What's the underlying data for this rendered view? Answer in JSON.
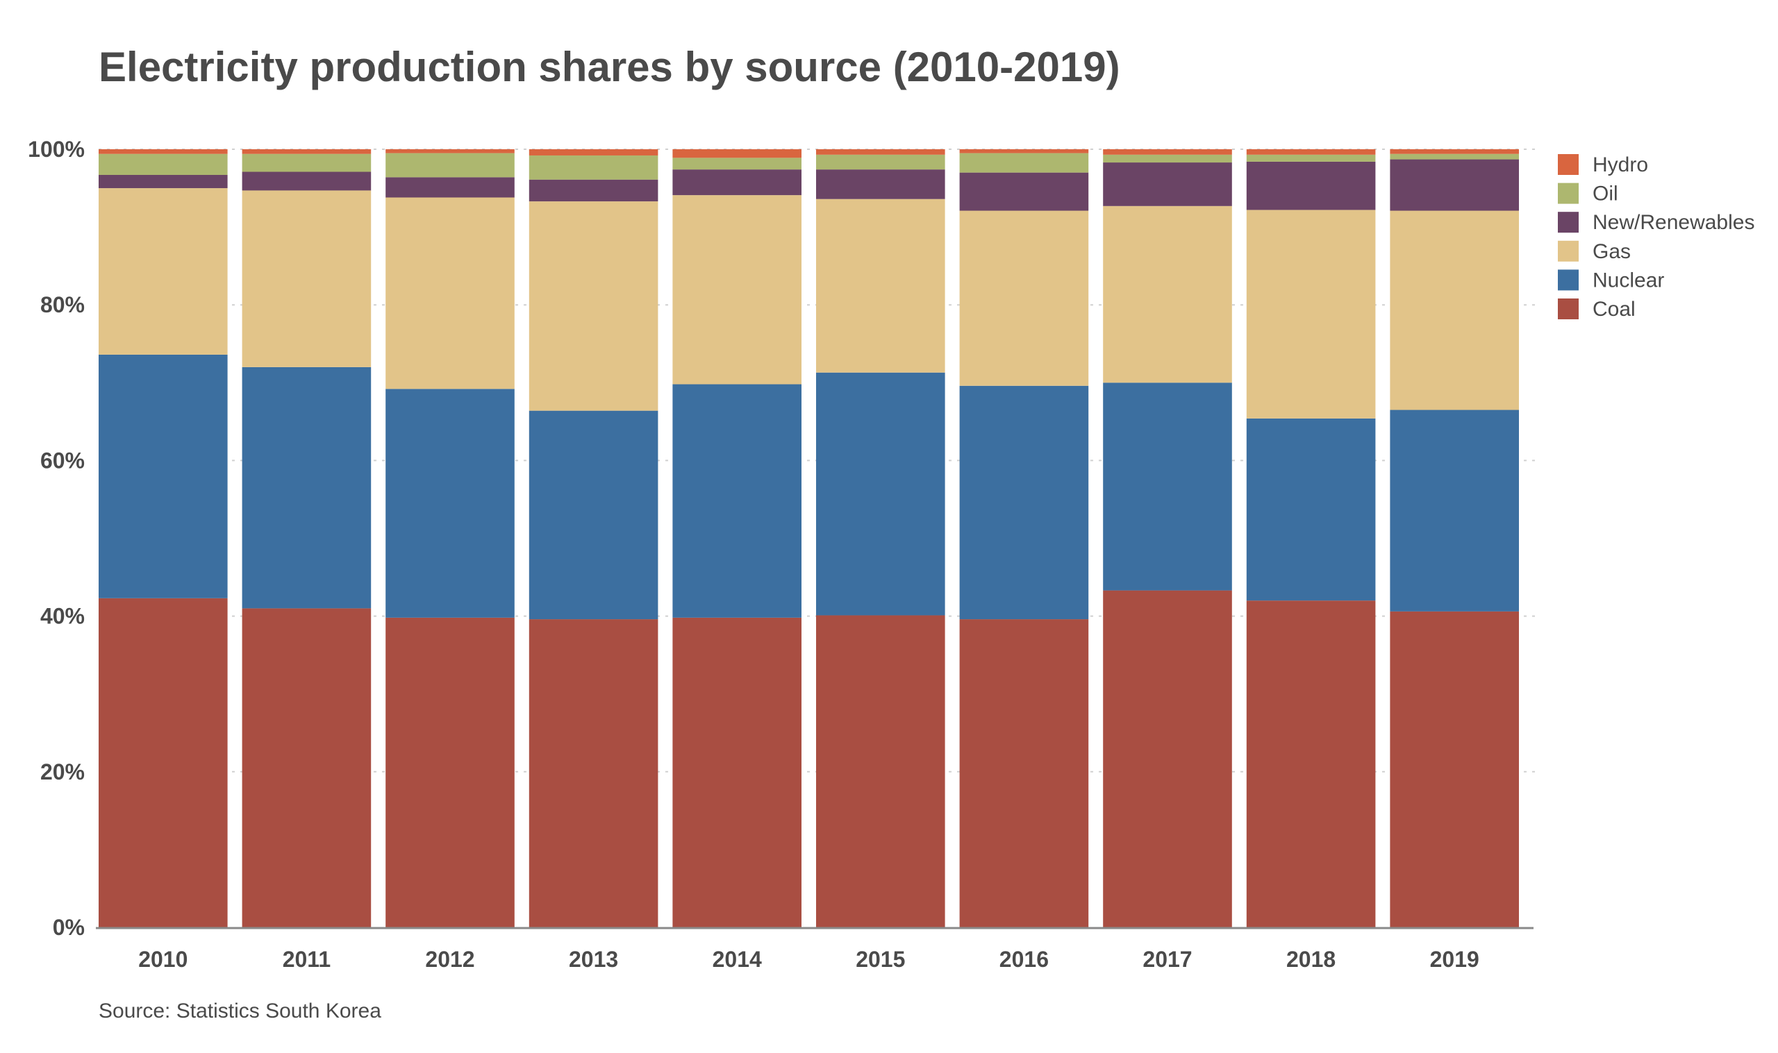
{
  "chart_data": {
    "type": "bar",
    "stacked": true,
    "normalized": true,
    "title": "Electricity production shares by source (2010-2019)",
    "source": "Source: Statistics South Korea",
    "categories": [
      "2010",
      "2011",
      "2012",
      "2013",
      "2014",
      "2015",
      "2016",
      "2017",
      "2018",
      "2019"
    ],
    "y_ticks": [
      "0%",
      "20%",
      "40%",
      "60%",
      "80%",
      "100%"
    ],
    "ylim": [
      0,
      100
    ],
    "grid": true,
    "legend_position": "top-right",
    "series": [
      {
        "name": "Coal",
        "color": "#a94e42",
        "values": [
          42.3,
          41.0,
          39.8,
          39.6,
          39.8,
          40.1,
          39.6,
          43.3,
          42.0,
          40.6
        ]
      },
      {
        "name": "Nuclear",
        "color": "#3c6fa0",
        "values": [
          31.3,
          31.0,
          29.4,
          26.8,
          30.0,
          31.2,
          30.0,
          26.7,
          23.4,
          25.9
        ]
      },
      {
        "name": "Gas",
        "color": "#e2c489",
        "values": [
          21.4,
          22.7,
          24.6,
          26.9,
          24.3,
          22.3,
          22.5,
          22.7,
          26.8,
          25.6
        ]
      },
      {
        "name": "New/Renewables",
        "color": "#6a4465",
        "values": [
          1.7,
          2.4,
          2.6,
          2.8,
          3.3,
          3.8,
          4.9,
          5.6,
          6.2,
          6.6
        ]
      },
      {
        "name": "Oil",
        "color": "#adb76f",
        "values": [
          2.7,
          2.3,
          3.1,
          3.1,
          1.5,
          1.9,
          2.5,
          1.0,
          0.9,
          0.7
        ]
      },
      {
        "name": "Hydro",
        "color": "#d9653f",
        "values": [
          0.6,
          0.6,
          0.5,
          0.8,
          1.1,
          0.7,
          0.5,
          0.7,
          0.7,
          0.6
        ]
      }
    ],
    "legend_order": [
      "Hydro",
      "Oil",
      "New/Renewables",
      "Gas",
      "Nuclear",
      "Coal"
    ]
  }
}
